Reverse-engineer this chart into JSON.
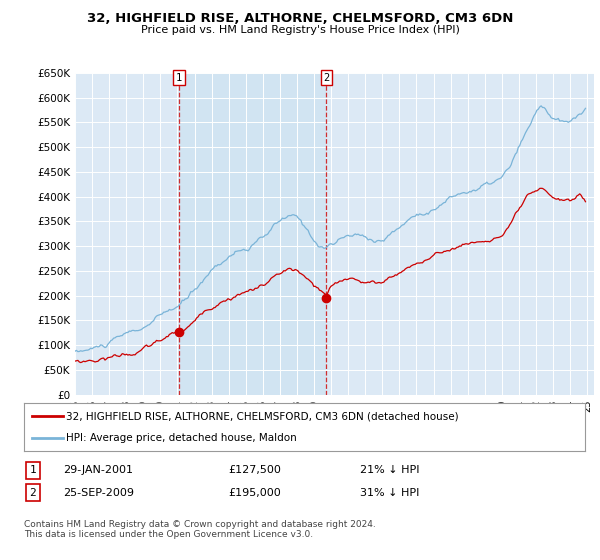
{
  "title": "32, HIGHFIELD RISE, ALTHORNE, CHELMSFORD, CM3 6DN",
  "subtitle": "Price paid vs. HM Land Registry's House Price Index (HPI)",
  "legend_line1": "32, HIGHFIELD RISE, ALTHORNE, CHELMSFORD, CM3 6DN (detached house)",
  "legend_line2": "HPI: Average price, detached house, Maldon",
  "transaction1_date": "29-JAN-2001",
  "transaction1_price": "£127,500",
  "transaction1_hpi": "21% ↓ HPI",
  "transaction2_date": "25-SEP-2009",
  "transaction2_price": "£195,000",
  "transaction2_hpi": "31% ↓ HPI",
  "footer": "Contains HM Land Registry data © Crown copyright and database right 2024.\nThis data is licensed under the Open Government Licence v3.0.",
  "hpi_color": "#7ab4d8",
  "price_color": "#cc0000",
  "vline_color": "#cc0000",
  "fill_color": "#d0e4f2",
  "background_color": "#dce9f5",
  "yticks": [
    0,
    50000,
    100000,
    150000,
    200000,
    250000,
    300000,
    350000,
    400000,
    450000,
    500000,
    550000,
    600000,
    650000
  ],
  "t1_x": 2001.08,
  "t1_y": 127500,
  "t2_x": 2009.73,
  "t2_y": 195000,
  "xmin": 1995.0,
  "xmax": 2025.4
}
